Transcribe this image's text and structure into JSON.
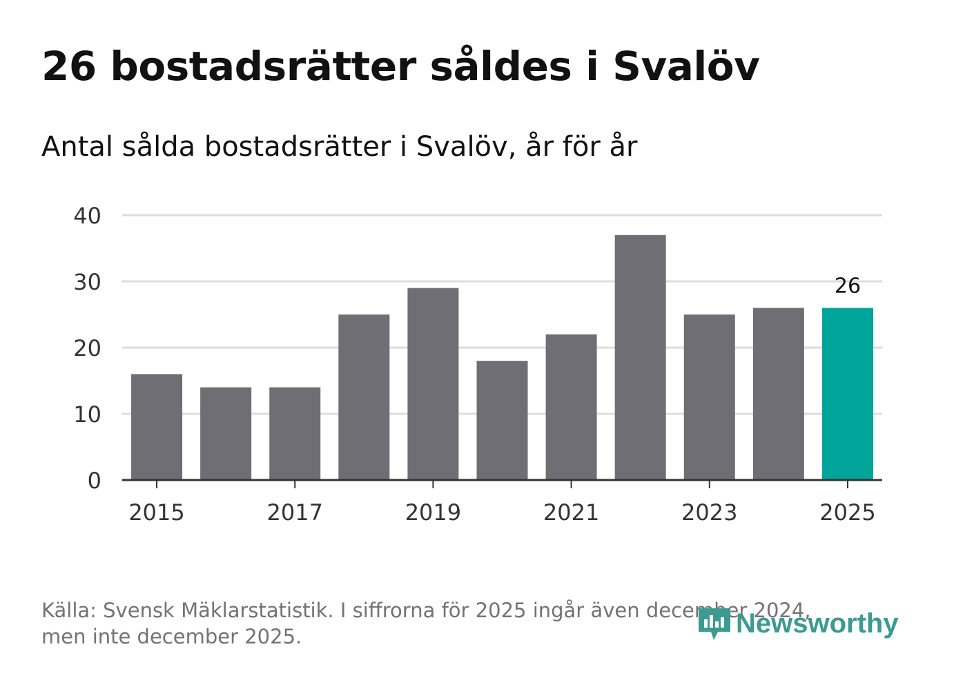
{
  "header": {
    "title": "26 bostadsrätter såldes i Svalöv",
    "subtitle": "Antal sålda bostadsrätter i Svalöv, år för år"
  },
  "chart_data": {
    "type": "bar",
    "categories": [
      "2015",
      "2016",
      "2017",
      "2018",
      "2019",
      "2020",
      "2021",
      "2022",
      "2023",
      "2024",
      "2025"
    ],
    "values": [
      16,
      14,
      14,
      25,
      29,
      18,
      22,
      37,
      25,
      26,
      26
    ],
    "x_tick_labels": [
      "2015",
      "2017",
      "2019",
      "2021",
      "2023",
      "2025"
    ],
    "y_ticks": [
      0,
      10,
      20,
      30,
      40
    ],
    "ylim": [
      0,
      40
    ],
    "highlight_category": "2025",
    "highlight_label": "26",
    "colors": {
      "bar": "#6f6e74",
      "highlight": "#00a59a",
      "grid": "#dddddd",
      "axis": "#333333"
    },
    "xlabel": "",
    "ylabel": ""
  },
  "footer": {
    "source_line1": "Källa: Svensk Mäklarstatistik. I siffrorna för 2025 ingår även december 2024,",
    "source_line2": "men inte december 2025."
  },
  "logo": {
    "text": "Newsworthy",
    "icon": "newsworthy-logo-icon",
    "color": "#3c9a93"
  }
}
